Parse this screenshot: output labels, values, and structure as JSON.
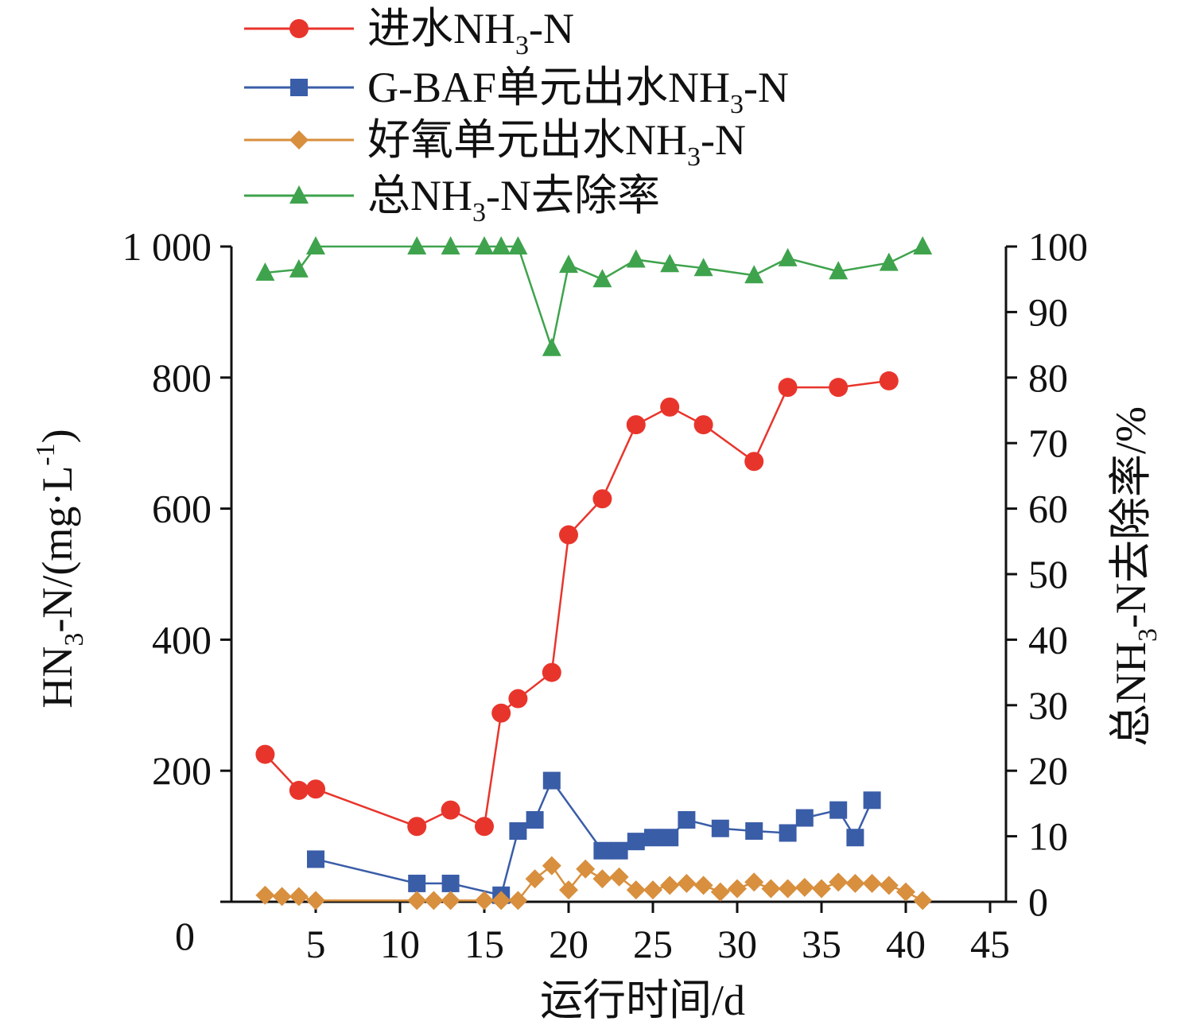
{
  "chart_data": {
    "type": "line",
    "xlabel": "运行时间/d",
    "ylabel_left": {
      "pre": "HN",
      "sub": "3",
      "post": "-N/(mg·L",
      "sup": "-1",
      "end": ")"
    },
    "ylabel_right": {
      "pre": "总NH",
      "sub": "3",
      "post": "-N去除率/%"
    },
    "xlim": [
      0,
      45
    ],
    "xticks": [
      5,
      10,
      15,
      20,
      25,
      30,
      35,
      40,
      45
    ],
    "ylim_left": [
      0,
      1000
    ],
    "yticks_left": [
      0,
      200,
      400,
      600,
      800,
      1000
    ],
    "ytick_labels_left": [
      "0",
      "200",
      "400",
      "600",
      "800",
      "1 000"
    ],
    "ylim_right": [
      0,
      100
    ],
    "yticks_right": [
      0,
      10,
      20,
      30,
      40,
      50,
      60,
      70,
      80,
      90,
      100
    ],
    "legend_position": "top",
    "series": [
      {
        "name": "进水NH3-N",
        "label": {
          "pre": "进水NH",
          "sub": "3",
          "post": "-N"
        },
        "axis": "left",
        "marker": "circle",
        "color": "#e8352c",
        "x": [
          2,
          4,
          5,
          11,
          13,
          15,
          16,
          17,
          19,
          20,
          22,
          24,
          26,
          28,
          31,
          33,
          36,
          39
        ],
        "y": [
          225,
          170,
          172,
          115,
          140,
          115,
          288,
          310,
          350,
          560,
          615,
          728,
          755,
          728,
          672,
          785,
          785,
          795
        ]
      },
      {
        "name": "G-BAF单元出水NH3-N",
        "label": {
          "pre": "G-BAF单元出水NH",
          "sub": "3",
          "post": "-N"
        },
        "axis": "left",
        "marker": "square",
        "color": "#3a5da8",
        "x": [
          5,
          11,
          13,
          16,
          17,
          18,
          19,
          22,
          23,
          24,
          25,
          26,
          27,
          29,
          31,
          33,
          34,
          36,
          37,
          38
        ],
        "y": [
          65,
          28,
          28,
          10,
          108,
          125,
          185,
          78,
          78,
          92,
          98,
          98,
          125,
          112,
          108,
          105,
          128,
          140,
          98,
          155
        ]
      },
      {
        "name": "好氧单元出水NH3-N",
        "label": {
          "pre": "好氧单元出水NH",
          "sub": "3",
          "post": "-N"
        },
        "axis": "left",
        "marker": "diamond",
        "color": "#d88f3e",
        "x": [
          2,
          3,
          4,
          5,
          11,
          12,
          13,
          15,
          16,
          17,
          18,
          19,
          20,
          21,
          22,
          23,
          24,
          25,
          26,
          27,
          28,
          29,
          30,
          31,
          32,
          33,
          34,
          35,
          36,
          37,
          38,
          39,
          40,
          41
        ],
        "y": [
          10,
          8,
          8,
          2,
          2,
          2,
          2,
          2,
          2,
          2,
          35,
          55,
          18,
          50,
          35,
          38,
          18,
          18,
          25,
          28,
          25,
          15,
          20,
          30,
          20,
          20,
          22,
          20,
          30,
          28,
          28,
          25,
          15,
          2
        ]
      },
      {
        "name": "总NH3-N去除率",
        "label": {
          "pre": "总NH",
          "sub": "3",
          "post": "-N去除率"
        },
        "axis": "right",
        "marker": "triangle",
        "color": "#3fa34d",
        "x": [
          2,
          4,
          5,
          11,
          13,
          15,
          16,
          17,
          19,
          20,
          22,
          24,
          26,
          28,
          31,
          33,
          36,
          39,
          41
        ],
        "y": [
          96,
          96.5,
          100,
          100,
          100,
          100,
          100,
          100,
          84.5,
          97.2,
          95,
          98,
          97.3,
          96.7,
          95.6,
          98.2,
          96.2,
          97.5,
          100
        ]
      }
    ]
  }
}
